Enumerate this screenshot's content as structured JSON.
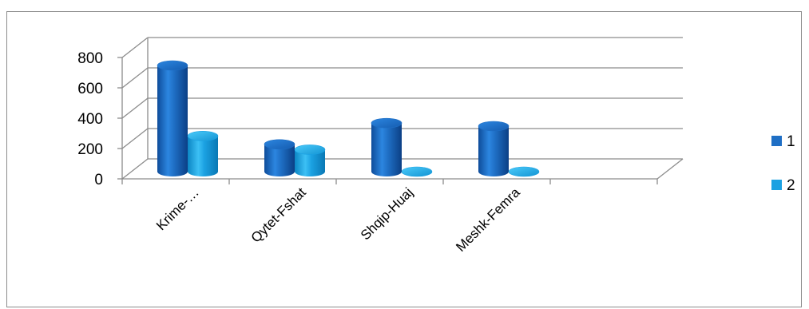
{
  "chart_data": {
    "type": "bar",
    "style": "3d-cylinder",
    "categories": [
      "Krime-…",
      "Qytet-Fshat",
      "Shqip-Huaj",
      "Meshk-Femra"
    ],
    "series": [
      {
        "name": "1",
        "values": [
          700,
          180,
          320,
          300
        ],
        "color": "#1F6FC5"
      },
      {
        "name": "2",
        "values": [
          235,
          145,
          0,
          0
        ],
        "color": "#1BA1E2"
      }
    ],
    "y_ticks": [
      "0",
      "200",
      "400",
      "600",
      "800"
    ],
    "ylim": [
      0,
      800
    ],
    "grid": true,
    "legend_position": "right",
    "title": "",
    "xlabel": "",
    "ylabel": ""
  }
}
